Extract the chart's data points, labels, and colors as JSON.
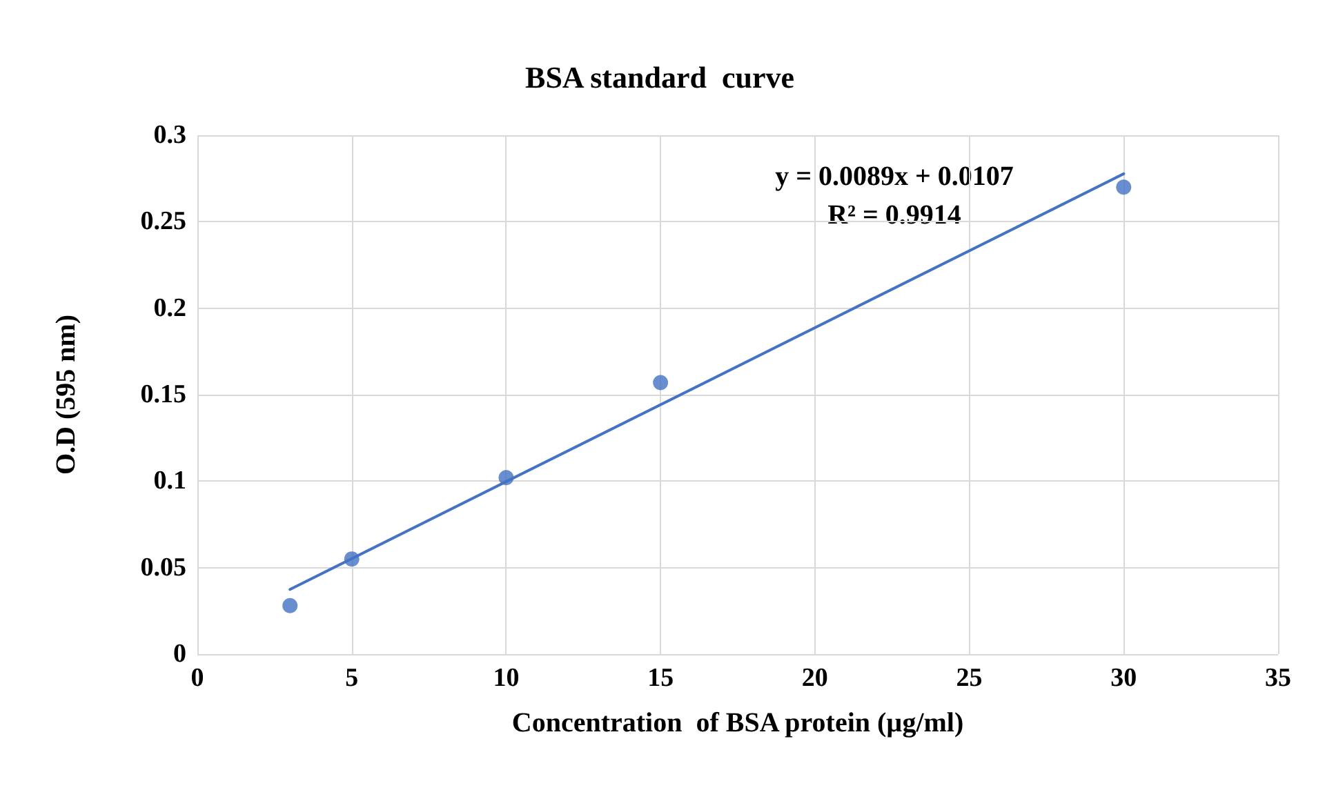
{
  "chart_data": {
    "type": "scatter",
    "title": "BSA standard  curve",
    "xlabel": "Concentration  of BSA protein (µg/ml)",
    "ylabel": "O.D (595 nm)",
    "x": [
      3,
      5,
      10,
      15,
      30
    ],
    "series": [
      {
        "type": "scatter",
        "color": "#4472c4",
        "values": [
          0.028,
          0.055,
          0.102,
          0.157,
          0.27
        ],
        "marker": "circle"
      },
      {
        "type": "line",
        "color": "#4472c4",
        "x": [
          3,
          30
        ],
        "values": [
          0.0374,
          0.2777
        ],
        "marker": "none",
        "line_style": "solid"
      }
    ],
    "annotations": [
      "y = 0.0089x + 0.0107",
      "R² = 0.9914"
    ],
    "xlim": [
      0,
      35
    ],
    "xticks": [
      0,
      5,
      10,
      15,
      20,
      25,
      30,
      35
    ],
    "ylim": [
      0,
      0.3
    ],
    "yticks": [
      0,
      0.05,
      0.1,
      0.15,
      0.2,
      0.25,
      0.3
    ],
    "grid": true
  }
}
